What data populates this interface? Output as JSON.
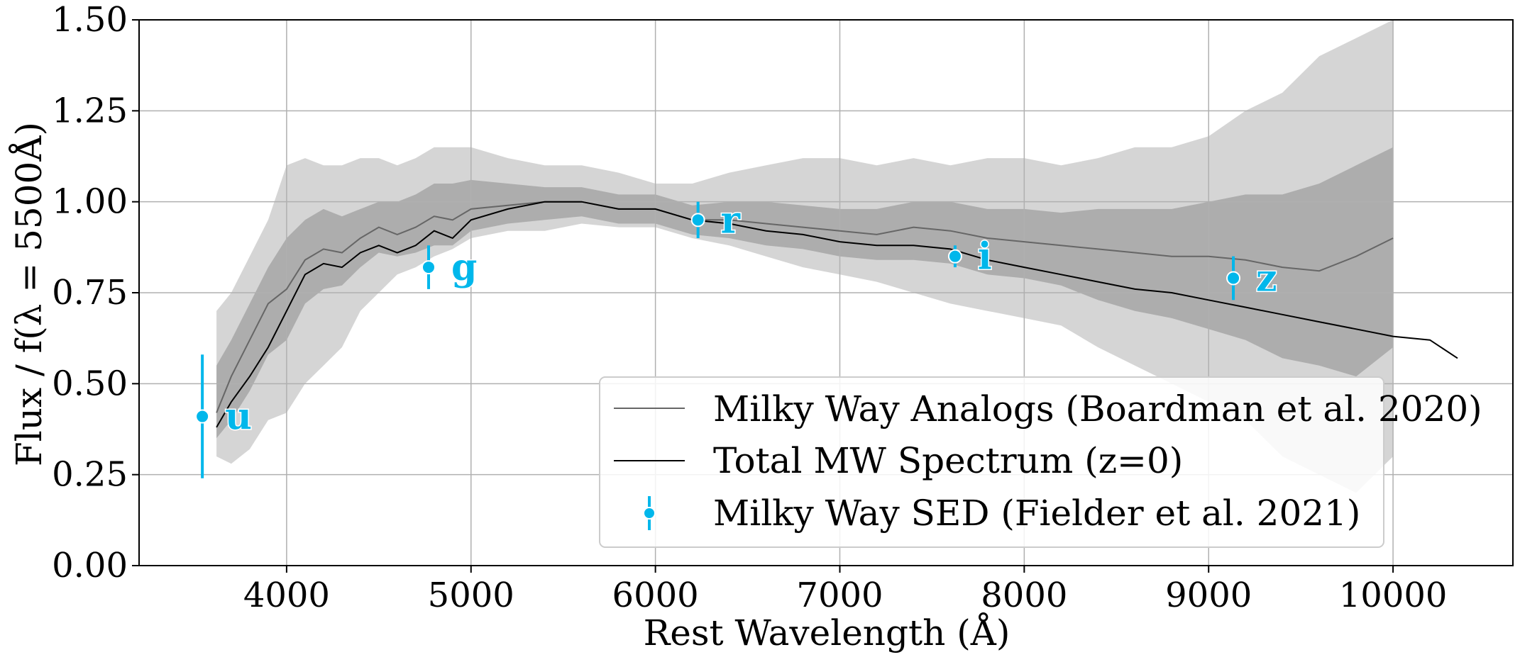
{
  "chart_data": {
    "type": "line",
    "xlabel": "Rest Wavelength (Å)",
    "ylabel": "Flux / f(λ = 5500Å)",
    "xlim": [
      3200,
      10650
    ],
    "ylim": [
      0.0,
      1.5
    ],
    "x_ticks": [
      4000,
      5000,
      6000,
      7000,
      8000,
      9000,
      10000
    ],
    "y_ticks": [
      0.0,
      0.25,
      0.5,
      0.75,
      1.0,
      1.25,
      1.5
    ],
    "x_tick_labels": [
      "4000",
      "5000",
      "6000",
      "7000",
      "8000",
      "9000",
      "10000"
    ],
    "y_tick_labels": [
      "0.00",
      "0.25",
      "0.50",
      "0.75",
      "1.00",
      "1.25",
      "1.50"
    ],
    "grid": true,
    "legend_position": "lower-right",
    "colors": {
      "sed": "#00B7EB",
      "analogs": "#666666",
      "total": "#000000",
      "band_outer": "#d3d3d3",
      "band_inner": "#a9a9a9"
    },
    "series": [
      {
        "name": "Milky Way Analogs (Boardman et al. 2020)",
        "style": "line",
        "x": [
          3620,
          3700,
          3800,
          3900,
          4000,
          4100,
          4200,
          4300,
          4400,
          4500,
          4600,
          4700,
          4800,
          4900,
          5000,
          5200,
          5400,
          5600,
          5800,
          6000,
          6200,
          6400,
          6600,
          6800,
          7000,
          7200,
          7400,
          7600,
          7800,
          8000,
          8200,
          8400,
          8600,
          8800,
          9000,
          9200,
          9400,
          9600,
          9800,
          10000
        ],
        "y": [
          0.42,
          0.52,
          0.62,
          0.72,
          0.76,
          0.84,
          0.87,
          0.86,
          0.9,
          0.93,
          0.91,
          0.93,
          0.96,
          0.95,
          0.98,
          0.99,
          1.0,
          1.0,
          0.98,
          0.98,
          0.95,
          0.95,
          0.94,
          0.93,
          0.92,
          0.91,
          0.93,
          0.92,
          0.9,
          0.89,
          0.88,
          0.87,
          0.86,
          0.85,
          0.85,
          0.84,
          0.82,
          0.81,
          0.85,
          0.9
        ],
        "upper_outer": [
          0.7,
          0.75,
          0.85,
          0.95,
          1.1,
          1.12,
          1.1,
          1.1,
          1.12,
          1.12,
          1.1,
          1.12,
          1.15,
          1.15,
          1.15,
          1.12,
          1.1,
          1.1,
          1.08,
          1.05,
          1.05,
          1.08,
          1.1,
          1.12,
          1.12,
          1.1,
          1.12,
          1.1,
          1.12,
          1.12,
          1.1,
          1.12,
          1.15,
          1.15,
          1.18,
          1.25,
          1.3,
          1.4,
          1.45,
          1.5
        ],
        "lower_outer": [
          0.3,
          0.28,
          0.32,
          0.4,
          0.42,
          0.5,
          0.55,
          0.6,
          0.7,
          0.75,
          0.8,
          0.82,
          0.85,
          0.87,
          0.9,
          0.92,
          0.92,
          0.94,
          0.93,
          0.93,
          0.9,
          0.88,
          0.85,
          0.82,
          0.8,
          0.78,
          0.75,
          0.72,
          0.7,
          0.68,
          0.66,
          0.6,
          0.55,
          0.5,
          0.45,
          0.4,
          0.3,
          0.25,
          0.2,
          0.3
        ],
        "upper_inner": [
          0.55,
          0.62,
          0.72,
          0.82,
          0.9,
          0.95,
          0.98,
          0.96,
          0.98,
          1.0,
          1.0,
          1.02,
          1.05,
          1.05,
          1.06,
          1.05,
          1.04,
          1.04,
          1.02,
          1.02,
          0.99,
          1.0,
          1.0,
          0.99,
          0.98,
          0.98,
          1.0,
          1.0,
          0.98,
          0.98,
          0.97,
          0.98,
          0.98,
          0.98,
          1.0,
          1.02,
          1.02,
          1.05,
          1.1,
          1.15
        ],
        "lower_inner": [
          0.35,
          0.4,
          0.48,
          0.58,
          0.62,
          0.72,
          0.76,
          0.77,
          0.82,
          0.86,
          0.85,
          0.86,
          0.88,
          0.88,
          0.92,
          0.94,
          0.95,
          0.96,
          0.94,
          0.94,
          0.91,
          0.9,
          0.88,
          0.87,
          0.85,
          0.84,
          0.84,
          0.83,
          0.8,
          0.79,
          0.77,
          0.73,
          0.7,
          0.68,
          0.65,
          0.62,
          0.57,
          0.55,
          0.52,
          0.6
        ]
      },
      {
        "name": "Total MW Spectrum (z=0)",
        "style": "line",
        "x": [
          3620,
          3700,
          3800,
          3900,
          4000,
          4100,
          4200,
          4300,
          4400,
          4500,
          4600,
          4700,
          4800,
          4900,
          5000,
          5200,
          5400,
          5600,
          5800,
          6000,
          6200,
          6400,
          6600,
          6800,
          7000,
          7200,
          7400,
          7600,
          7800,
          8000,
          8200,
          8400,
          8600,
          8800,
          9000,
          9200,
          9400,
          9600,
          9800,
          10000,
          10200,
          10350
        ],
        "y": [
          0.38,
          0.45,
          0.52,
          0.6,
          0.7,
          0.8,
          0.83,
          0.82,
          0.86,
          0.88,
          0.86,
          0.88,
          0.92,
          0.9,
          0.95,
          0.98,
          1.0,
          1.0,
          0.98,
          0.98,
          0.95,
          0.94,
          0.92,
          0.91,
          0.89,
          0.88,
          0.88,
          0.87,
          0.84,
          0.82,
          0.8,
          0.78,
          0.76,
          0.75,
          0.73,
          0.71,
          0.69,
          0.67,
          0.65,
          0.63,
          0.62,
          0.57
        ]
      },
      {
        "name": "Milky Way SED (Fielder et al. 2021)",
        "style": "errorbar",
        "points": [
          {
            "band": "u",
            "x": 3543,
            "y": 0.41,
            "err": 0.17
          },
          {
            "band": "g",
            "x": 4770,
            "y": 0.82,
            "err": 0.06
          },
          {
            "band": "r",
            "x": 6231,
            "y": 0.95,
            "err": 0.05
          },
          {
            "band": "i",
            "x": 7625,
            "y": 0.85,
            "err": 0.03
          },
          {
            "band": "z",
            "x": 9134,
            "y": 0.79,
            "err": 0.06
          }
        ]
      }
    ]
  }
}
